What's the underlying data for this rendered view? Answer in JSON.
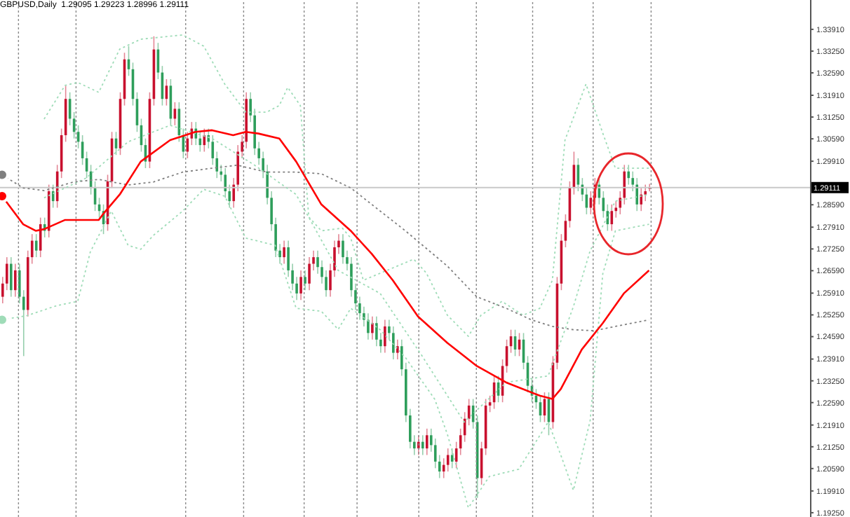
{
  "chart_data": {
    "type": "candlestick",
    "title": "GBPUSD,Daily  1.29095 1.29223 1.28996 1.29111",
    "categories": [
      null,
      null,
      null,
      null,
      null,
      null,
      null,
      null,
      null,
      null,
      null,
      null,
      null,
      null,
      null,
      null,
      null,
      null,
      null,
      null,
      null,
      null,
      null,
      null,
      null,
      null,
      null,
      null,
      null,
      null,
      null,
      null,
      null,
      null,
      null,
      null,
      null,
      null,
      null,
      null,
      null,
      null,
      null,
      null,
      null,
      null,
      null,
      null,
      null,
      null,
      null,
      null,
      null,
      null,
      null,
      null,
      null,
      null,
      null,
      null,
      null,
      null,
      null,
      null,
      null,
      null,
      null,
      null,
      null,
      null,
      null,
      null,
      null,
      null,
      null,
      null,
      null,
      null,
      null,
      null,
      null,
      null,
      null,
      null,
      null,
      null,
      null,
      null,
      null,
      null,
      null,
      null,
      null,
      null,
      null,
      null,
      null,
      null,
      null,
      null,
      null,
      null,
      null,
      null,
      null,
      null,
      null,
      null,
      null,
      null,
      null,
      null,
      null,
      null,
      null,
      null,
      null,
      null,
      null,
      null,
      null,
      null,
      null,
      null,
      null,
      null,
      null,
      null,
      null,
      null,
      null,
      null,
      null,
      null,
      null,
      null,
      null,
      null,
      null,
      null,
      null,
      null,
      null,
      null,
      null,
      null,
      null,
      null,
      null,
      null,
      null,
      null,
      null,
      null,
      null,
      null,
      null,
      null,
      null,
      null,
      null,
      null,
      null,
      null,
      null,
      null,
      null,
      null,
      null,
      null,
      null,
      null,
      null,
      null,
      null,
      null,
      null,
      null,
      null,
      null,
      null,
      null,
      null,
      null,
      null,
      null,
      null,
      null,
      null,
      null,
      null,
      null,
      null
    ],
    "ohlc": [
      [
        1.258,
        1.264,
        1.256,
        1.262
      ],
      [
        1.262,
        1.27,
        1.26,
        1.268
      ],
      [
        1.268,
        1.27,
        1.258,
        1.26
      ],
      [
        1.26,
        1.268,
        1.258,
        1.266
      ],
      [
        1.266,
        1.268,
        1.256,
        1.258
      ],
      [
        1.258,
        1.26,
        1.24,
        1.254
      ],
      [
        1.254,
        1.272,
        1.252,
        1.27
      ],
      [
        1.27,
        1.277,
        1.268,
        1.275
      ],
      [
        1.275,
        1.277,
        1.27,
        1.272
      ],
      [
        1.272,
        1.282,
        1.27,
        1.28
      ],
      [
        1.28,
        1.282,
        1.276,
        1.278
      ],
      [
        1.278,
        1.292,
        1.276,
        1.29
      ],
      [
        1.29,
        1.292,
        1.285,
        1.287
      ],
      [
        1.287,
        1.298,
        1.285,
        1.296
      ],
      [
        1.296,
        1.309,
        1.294,
        1.307
      ],
      [
        1.307,
        1.322,
        1.305,
        1.318
      ],
      [
        1.318,
        1.32,
        1.31,
        1.312
      ],
      [
        1.312,
        1.314,
        1.306,
        1.308
      ],
      [
        1.308,
        1.31,
        1.303,
        1.305
      ],
      [
        1.305,
        1.307,
        1.298,
        1.3
      ],
      [
        1.3,
        1.302,
        1.294,
        1.296
      ],
      [
        1.296,
        1.298,
        1.289,
        1.291
      ],
      [
        1.291,
        1.293,
        1.284,
        1.286
      ],
      [
        1.286,
        1.288,
        1.282,
        1.284
      ],
      [
        1.284,
        1.286,
        1.277,
        1.28
      ],
      [
        1.28,
        1.295,
        1.278,
        1.293
      ],
      [
        1.293,
        1.308,
        1.291,
        1.306
      ],
      [
        1.306,
        1.308,
        1.301,
        1.303
      ],
      [
        1.303,
        1.32,
        1.301,
        1.318
      ],
      [
        1.318,
        1.332,
        1.316,
        1.33
      ],
      [
        1.33,
        1.334,
        1.325,
        1.327
      ],
      [
        1.327,
        1.329,
        1.316,
        1.318
      ],
      [
        1.318,
        1.32,
        1.308,
        1.31
      ],
      [
        1.31,
        1.312,
        1.302,
        1.304
      ],
      [
        1.304,
        1.306,
        1.297,
        1.299
      ],
      [
        1.299,
        1.32,
        1.297,
        1.318
      ],
      [
        1.318,
        1.337,
        1.316,
        1.333
      ],
      [
        1.333,
        1.335,
        1.324,
        1.326
      ],
      [
        1.326,
        1.328,
        1.316,
        1.318
      ],
      [
        1.318,
        1.324,
        1.316,
        1.322
      ],
      [
        1.322,
        1.324,
        1.31,
        1.312
      ],
      [
        1.312,
        1.317,
        1.31,
        1.315
      ],
      [
        1.315,
        1.317,
        1.305,
        1.307
      ],
      [
        1.307,
        1.309,
        1.3,
        1.302
      ],
      [
        1.302,
        1.308,
        1.3,
        1.306
      ],
      [
        1.306,
        1.311,
        1.304,
        1.309
      ],
      [
        1.309,
        1.311,
        1.304,
        1.306
      ],
      [
        1.306,
        1.308,
        1.302,
        1.304
      ],
      [
        1.304,
        1.309,
        1.302,
        1.307
      ],
      [
        1.307,
        1.309,
        1.303,
        1.305
      ],
      [
        1.305,
        1.307,
        1.298,
        1.3
      ],
      [
        1.3,
        1.302,
        1.294,
        1.296
      ],
      [
        1.296,
        1.298,
        1.293,
        1.295
      ],
      [
        1.295,
        1.297,
        1.288,
        1.29
      ],
      [
        1.29,
        1.292,
        1.285,
        1.287
      ],
      [
        1.287,
        1.294,
        1.285,
        1.292
      ],
      [
        1.292,
        1.304,
        1.29,
        1.302
      ],
      [
        1.302,
        1.307,
        1.3,
        1.305
      ],
      [
        1.305,
        1.32,
        1.303,
        1.318
      ],
      [
        1.318,
        1.32,
        1.311,
        1.313
      ],
      [
        1.313,
        1.315,
        1.301,
        1.303
      ],
      [
        1.303,
        1.305,
        1.298,
        1.3
      ],
      [
        1.3,
        1.302,
        1.294,
        1.296
      ],
      [
        1.296,
        1.298,
        1.286,
        1.288
      ],
      [
        1.288,
        1.29,
        1.278,
        1.28
      ],
      [
        1.28,
        1.282,
        1.27,
        1.272
      ],
      [
        1.272,
        1.274,
        1.268,
        1.27
      ],
      [
        1.27,
        1.275,
        1.268,
        1.273
      ],
      [
        1.273,
        1.275,
        1.264,
        1.266
      ],
      [
        1.266,
        1.268,
        1.26,
        1.262
      ],
      [
        1.262,
        1.264,
        1.257,
        1.259
      ],
      [
        1.259,
        1.266,
        1.257,
        1.264
      ],
      [
        1.264,
        1.266,
        1.26,
        1.262
      ],
      [
        1.262,
        1.27,
        1.26,
        1.268
      ],
      [
        1.268,
        1.272,
        1.266,
        1.27
      ],
      [
        1.27,
        1.272,
        1.265,
        1.267
      ],
      [
        1.267,
        1.269,
        1.262,
        1.264
      ],
      [
        1.264,
        1.266,
        1.258,
        1.26
      ],
      [
        1.26,
        1.268,
        1.258,
        1.266
      ],
      [
        1.266,
        1.275,
        1.264,
        1.273
      ],
      [
        1.273,
        1.277,
        1.271,
        1.275
      ],
      [
        1.275,
        1.277,
        1.268,
        1.27
      ],
      [
        1.27,
        1.272,
        1.266,
        1.268
      ],
      [
        1.268,
        1.27,
        1.258,
        1.26
      ],
      [
        1.26,
        1.262,
        1.254,
        1.256
      ],
      [
        1.256,
        1.258,
        1.251,
        1.253
      ],
      [
        1.253,
        1.255,
        1.249,
        1.251
      ],
      [
        1.251,
        1.253,
        1.245,
        1.247
      ],
      [
        1.247,
        1.252,
        1.245,
        1.25
      ],
      [
        1.25,
        1.252,
        1.243,
        1.245
      ],
      [
        1.245,
        1.247,
        1.241,
        1.243
      ],
      [
        1.243,
        1.251,
        1.241,
        1.249
      ],
      [
        1.249,
        1.251,
        1.245,
        1.247
      ],
      [
        1.247,
        1.249,
        1.239,
        1.241
      ],
      [
        1.241,
        1.245,
        1.239,
        1.243
      ],
      [
        1.243,
        1.245,
        1.234,
        1.236
      ],
      [
        1.236,
        1.238,
        1.22,
        1.222
      ],
      [
        1.222,
        1.224,
        1.212,
        1.214
      ],
      [
        1.214,
        1.216,
        1.21,
        1.212
      ],
      [
        1.212,
        1.216,
        1.21,
        1.214
      ],
      [
        1.214,
        1.216,
        1.21,
        1.212
      ],
      [
        1.212,
        1.218,
        1.21,
        1.216
      ],
      [
        1.216,
        1.218,
        1.211,
        1.213
      ],
      [
        1.213,
        1.215,
        1.206,
        1.208
      ],
      [
        1.208,
        1.21,
        1.203,
        1.205
      ],
      [
        1.205,
        1.209,
        1.203,
        1.207
      ],
      [
        1.207,
        1.212,
        1.205,
        1.21
      ],
      [
        1.21,
        1.212,
        1.206,
        1.208
      ],
      [
        1.208,
        1.214,
        1.206,
        1.212
      ],
      [
        1.212,
        1.218,
        1.21,
        1.216
      ],
      [
        1.216,
        1.223,
        1.214,
        1.221
      ],
      [
        1.221,
        1.227,
        1.219,
        1.225
      ],
      [
        1.225,
        1.227,
        1.218,
        1.22
      ],
      [
        1.22,
        1.222,
        1.197,
        1.203
      ],
      [
        1.203,
        1.214,
        1.201,
        1.212
      ],
      [
        1.212,
        1.227,
        1.21,
        1.225
      ],
      [
        1.225,
        1.228,
        1.223,
        1.226
      ],
      [
        1.226,
        1.234,
        1.224,
        1.232
      ],
      [
        1.232,
        1.234,
        1.226,
        1.228
      ],
      [
        1.228,
        1.239,
        1.226,
        1.237
      ],
      [
        1.237,
        1.245,
        1.235,
        1.243
      ],
      [
        1.243,
        1.248,
        1.241,
        1.246
      ],
      [
        1.246,
        1.248,
        1.24,
        1.242
      ],
      [
        1.242,
        1.247,
        1.24,
        1.245
      ],
      [
        1.245,
        1.247,
        1.236,
        1.238
      ],
      [
        1.238,
        1.24,
        1.229,
        1.231
      ],
      [
        1.231,
        1.233,
        1.226,
        1.228
      ],
      [
        1.228,
        1.23,
        1.224,
        1.226
      ],
      [
        1.226,
        1.228,
        1.22,
        1.222
      ],
      [
        1.222,
        1.229,
        1.22,
        1.227
      ],
      [
        1.227,
        1.229,
        1.216,
        1.22
      ],
      [
        1.22,
        1.24,
        1.218,
        1.238
      ],
      [
        1.238,
        1.264,
        1.236,
        1.262
      ],
      [
        1.262,
        1.277,
        1.26,
        1.275
      ],
      [
        1.275,
        1.283,
        1.273,
        1.281
      ],
      [
        1.281,
        1.293,
        1.279,
        1.291
      ],
      [
        1.291,
        1.302,
        1.289,
        1.298
      ],
      [
        1.298,
        1.3,
        1.29,
        1.292
      ],
      [
        1.292,
        1.294,
        1.287,
        1.289
      ],
      [
        1.289,
        1.291,
        1.283,
        1.285
      ],
      [
        1.285,
        1.29,
        1.283,
        1.288
      ],
      [
        1.288,
        1.294,
        1.286,
        1.292
      ],
      [
        1.292,
        1.294,
        1.286,
        1.288
      ],
      [
        1.288,
        1.29,
        1.282,
        1.284
      ],
      [
        1.284,
        1.286,
        1.278,
        1.28
      ],
      [
        1.28,
        1.286,
        1.278,
        1.284
      ],
      [
        1.284,
        1.287,
        1.282,
        1.285
      ],
      [
        1.285,
        1.29,
        1.283,
        1.288
      ],
      [
        1.288,
        1.298,
        1.286,
        1.296
      ],
      [
        1.296,
        1.298,
        1.292,
        1.294
      ],
      [
        1.294,
        1.296,
        1.29,
        1.292
      ],
      [
        1.292,
        1.294,
        1.284,
        1.286
      ],
      [
        1.286,
        1.291,
        1.284,
        1.289
      ],
      [
        1.289,
        1.292,
        1.287,
        1.29
      ],
      [
        1.29095,
        1.29223,
        1.28996,
        1.29111
      ],
      null,
      null,
      null,
      null,
      null,
      null,
      null,
      null,
      null,
      null,
      null,
      null,
      null,
      null,
      null,
      null,
      null,
      null,
      null,
      null,
      null,
      null,
      null,
      null,
      null,
      null,
      null,
      null,
      null,
      null,
      null,
      null,
      null,
      null,
      null,
      null,
      null,
      null
    ],
    "series": [
      {
        "type": "line",
        "color": "#9fdcb8",
        "line_style": "dotted",
        "values": [
          null,
          null,
          null,
          null,
          null,
          null,
          null,
          null,
          null,
          null,
          1.3119,
          null,
          null,
          null,
          null,
          1.3221,
          null,
          null,
          1.323,
          null,
          null,
          null,
          null,
          1.32,
          null,
          null,
          null,
          null,
          1.3331,
          null,
          null,
          null,
          null,
          1.3361,
          null,
          null,
          1.3365,
          null,
          null,
          null,
          null,
          null,
          null,
          1.3374,
          null,
          null,
          null,
          null,
          1.334,
          null,
          null,
          null,
          null,
          1.3225,
          null,
          null,
          null,
          null,
          1.314,
          null,
          null,
          null,
          null,
          1.314,
          null,
          null,
          1.316,
          null,
          1.3215,
          null,
          null,
          1.316,
          null,
          1.2822,
          null,
          null,
          1.278,
          null,
          null,
          null,
          null,
          1.2788,
          null,
          1.2758,
          null,
          null,
          1.263,
          null,
          null,
          null,
          null,
          null,
          null,
          null,
          null,
          null,
          null,
          null,
          1.2694,
          null,
          null,
          1.2652,
          null,
          null,
          null,
          null,
          1.2524,
          null,
          null,
          null,
          null,
          1.246,
          null,
          null,
          1.2524,
          null,
          null,
          null,
          null,
          1.2566,
          null,
          null,
          null,
          null,
          1.2524,
          null,
          null,
          null,
          1.2545,
          null,
          null,
          1.263,
          null,
          null,
          1.3055,
          null,
          null,
          null,
          null,
          1.3225,
          null,
          null,
          null,
          1.3076,
          null,
          null,
          1.297,
          null,
          null,
          null,
          null,
          null,
          null,
          null,
          1.297,
          null,
          null,
          null,
          null,
          null,
          null,
          null,
          null,
          null,
          null,
          null,
          null,
          null,
          null,
          null,
          null,
          null,
          null,
          null,
          null,
          null,
          null,
          null,
          null,
          null,
          null,
          null,
          null,
          null,
          null,
          null,
          null,
          null,
          null,
          null,
          null,
          null,
          null
        ]
      },
      {
        "type": "line",
        "color": "#9fdcb8",
        "line_style": "dotted",
        "values": [
          null,
          null,
          null,
          null,
          null,
          null,
          null,
          null,
          null,
          null,
          1.288,
          null,
          null,
          null,
          null,
          null,
          null,
          null,
          null,
          null,
          1.294,
          null,
          null,
          null,
          null,
          null,
          null,
          null,
          null,
          null,
          1.305,
          null,
          null,
          null,
          null,
          null,
          null,
          null,
          null,
          null,
          1.31,
          null,
          null,
          null,
          null,
          null,
          null,
          null,
          null,
          null,
          1.306,
          null,
          null,
          null,
          null,
          null,
          null,
          null,
          null,
          null,
          1.298,
          null,
          null,
          null,
          null,
          null,
          null,
          null,
          null,
          null,
          1.289,
          null,
          null,
          null,
          null,
          null,
          null,
          null,
          null,
          null,
          1.266,
          null,
          null,
          null,
          null,
          null,
          null,
          null,
          null,
          null,
          1.259,
          null,
          null,
          null,
          null,
          null,
          null,
          null,
          null,
          null,
          1.24,
          null,
          null,
          null,
          null,
          null,
          null,
          null,
          null,
          null,
          1.22,
          null,
          null,
          null,
          null,
          null,
          null,
          null,
          null,
          null,
          1.232,
          null,
          null,
          null,
          null,
          null,
          null,
          null,
          null,
          null,
          1.234,
          null,
          null,
          null,
          null,
          null,
          1.255,
          null,
          null,
          null,
          1.272,
          null,
          null,
          null,
          null,
          null,
          1.287,
          null,
          null,
          null,
          null,
          null,
          null,
          null,
          1.289,
          null,
          null,
          null,
          null,
          null,
          null,
          null,
          null,
          null,
          null,
          null,
          null,
          null,
          null,
          null,
          null,
          null,
          null,
          null,
          null,
          null,
          null,
          null,
          null,
          null,
          null,
          null,
          null,
          null,
          null,
          null,
          null,
          null,
          null,
          null,
          null,
          null,
          null
        ]
      },
      {
        "type": "line",
        "color": "#9fdcb8",
        "line_style": "dotted",
        "values": [
          1.251,
          null,
          null,
          null,
          null,
          null,
          1.2523,
          null,
          null,
          null,
          null,
          null,
          null,
          1.2553,
          null,
          null,
          null,
          null,
          1.2566,
          null,
          null,
          1.2716,
          null,
          null,
          null,
          null,
          1.284,
          null,
          null,
          null,
          1.2736,
          null,
          null,
          1.2724,
          null,
          null,
          1.2766,
          null,
          null,
          null,
          null,
          null,
          null,
          1.284,
          null,
          null,
          null,
          null,
          1.2906,
          null,
          null,
          null,
          null,
          1.2885,
          null,
          null,
          null,
          null,
          1.2758,
          null,
          null,
          null,
          null,
          null,
          null,
          1.2736,
          null,
          null,
          null,
          null,
          1.2545,
          null,
          null,
          null,
          null,
          null,
          1.2536,
          null,
          null,
          null,
          1.2481,
          null,
          null,
          1.2545,
          null,
          null,
          null,
          null,
          null,
          null,
          1.248,
          null,
          null,
          null,
          null,
          null,
          1.2396,
          null,
          null,
          null,
          null,
          null,
          null,
          1.2269,
          null,
          null,
          1.2163,
          null,
          null,
          null,
          null,
          1.194,
          null,
          null,
          null,
          null,
          1.2035,
          null,
          null,
          null,
          null,
          null,
          null,
          1.2057,
          null,
          null,
          null,
          null,
          null,
          null,
          1.22,
          null,
          null,
          1.21,
          null,
          null,
          1.1993,
          null,
          null,
          null,
          1.2205,
          null,
          null,
          1.265,
          null,
          null,
          1.278,
          null,
          null,
          null,
          null,
          null,
          null,
          null,
          1.28,
          null,
          null,
          null,
          null,
          null,
          null,
          null,
          null,
          null,
          null,
          null,
          null,
          null,
          null,
          null,
          null,
          null,
          null,
          null,
          null,
          null,
          null,
          null,
          null,
          null,
          null,
          null,
          null,
          null,
          null,
          null,
          null,
          null,
          null,
          null,
          null,
          null,
          null
        ]
      },
      {
        "type": "line",
        "color": "#808080",
        "line_style": "dotted",
        "values": [
          1.295,
          null,
          null,
          null,
          null,
          1.291,
          null,
          null,
          null,
          null,
          1.2902,
          null,
          null,
          null,
          null,
          null,
          null,
          1.2928,
          null,
          null,
          null,
          null,
          null,
          1.2936,
          null,
          null,
          null,
          null,
          null,
          null,
          1.2919,
          null,
          null,
          null,
          null,
          null,
          1.2928,
          null,
          null,
          null,
          null,
          null,
          null,
          1.2958,
          null,
          null,
          null,
          null,
          null,
          null,
          1.297,
          null,
          null,
          null,
          null,
          null,
          1.2979,
          null,
          null,
          null,
          null,
          null,
          null,
          1.2958,
          null,
          null,
          null,
          null,
          null,
          null,
          1.2958,
          null,
          null,
          null,
          null,
          null,
          1.2953,
          null,
          null,
          null,
          null,
          null,
          null,
          1.291,
          null,
          null,
          null,
          null,
          null,
          null,
          1.284,
          null,
          null,
          null,
          null,
          null,
          1.278,
          null,
          null,
          null,
          null,
          null,
          null,
          null,
          null,
          null,
          1.2673,
          null,
          null,
          null,
          null,
          null,
          null,
          1.258,
          null,
          null,
          null,
          null,
          null,
          null,
          1.2545,
          null,
          null,
          null,
          null,
          null,
          1.251,
          null,
          null,
          null,
          null,
          1.249,
          null,
          null,
          null,
          null,
          1.248,
          null,
          null,
          null,
          null,
          1.2477,
          null,
          null,
          null,
          null,
          1.249,
          null,
          null,
          null,
          null,
          null,
          null,
          null,
          1.251,
          null,
          null,
          null,
          null,
          null,
          null,
          null,
          null,
          null,
          null,
          null,
          null,
          null,
          null,
          null,
          null,
          null,
          null,
          null,
          null,
          null,
          null,
          null,
          null,
          null,
          null,
          null,
          null,
          null,
          null,
          null,
          null,
          null,
          null,
          null,
          null,
          null,
          null
        ]
      },
      {
        "type": "line",
        "color": "#ff0000",
        "line_style": "solid",
        "values": [
          1.2885,
          null,
          null,
          null,
          null,
          1.28,
          null,
          null,
          1.278,
          null,
          1.2785,
          null,
          null,
          null,
          null,
          1.2813,
          null,
          null,
          null,
          null,
          null,
          null,
          null,
          1.2813,
          1.283,
          null,
          null,
          null,
          1.289,
          null,
          null,
          null,
          null,
          1.299,
          null,
          null,
          null,
          null,
          null,
          null,
          1.3055,
          null,
          null,
          null,
          null,
          null,
          1.308,
          null,
          null,
          null,
          1.3085,
          null,
          null,
          null,
          null,
          1.307,
          null,
          null,
          1.308,
          null,
          null,
          1.3075,
          null,
          null,
          null,
          null,
          1.306,
          null,
          null,
          null,
          1.299,
          null,
          null,
          null,
          null,
          null,
          1.286,
          null,
          null,
          null,
          null,
          null,
          null,
          1.278,
          null,
          null,
          null,
          null,
          1.271,
          null,
          null,
          null,
          null,
          1.263,
          null,
          null,
          null,
          null,
          null,
          1.252,
          null,
          null,
          null,
          null,
          null,
          null,
          1.244,
          null,
          null,
          null,
          null,
          null,
          null,
          1.237,
          null,
          null,
          null,
          null,
          null,
          null,
          1.232,
          null,
          null,
          null,
          null,
          null,
          null,
          null,
          1.228,
          null,
          null,
          1.227,
          null,
          1.23,
          null,
          null,
          null,
          null,
          1.242,
          null,
          null,
          null,
          null,
          1.25,
          null,
          null,
          null,
          null,
          1.259,
          null,
          null,
          null,
          null,
          null,
          1.266,
          null,
          null,
          null,
          null,
          null,
          null,
          null,
          null,
          null,
          null,
          null,
          null,
          null,
          null,
          null,
          null,
          null,
          null,
          null,
          null,
          null,
          null,
          null,
          null,
          null,
          null,
          null,
          null,
          null,
          null,
          null,
          null,
          null,
          null,
          null,
          null,
          null,
          null
        ]
      }
    ],
    "ylim": [
      1.1912,
      1.348
    ],
    "yticks": [
      {
        "value": 1.3391,
        "label": "1.33910"
      },
      {
        "value": 1.3325,
        "label": "1.33250"
      },
      {
        "value": 1.3259,
        "label": "1.32590"
      },
      {
        "value": 1.3191,
        "label": "1.31910"
      },
      {
        "value": 1.3125,
        "label": "1.31250"
      },
      {
        "value": 1.3059,
        "label": "1.30590"
      },
      {
        "value": 1.2991,
        "label": "1.29910"
      },
      {
        "value": 1.2859,
        "label": "1.28590"
      },
      {
        "value": 1.2791,
        "label": "1.27910"
      },
      {
        "value": 1.2725,
        "label": "1.27250"
      },
      {
        "value": 1.2659,
        "label": "1.26590"
      },
      {
        "value": 1.2591,
        "label": "1.25910"
      },
      {
        "value": 1.2525,
        "label": "1.25250"
      },
      {
        "value": 1.2459,
        "label": "1.24590"
      },
      {
        "value": 1.2391,
        "label": "1.23910"
      },
      {
        "value": 1.2325,
        "label": "1.23250"
      },
      {
        "value": 1.2259,
        "label": "1.22590"
      },
      {
        "value": 1.2191,
        "label": "1.21910"
      },
      {
        "value": 1.2125,
        "label": "1.21250"
      },
      {
        "value": 1.2059,
        "label": "1.20590"
      },
      {
        "value": 1.1991,
        "label": "1.19910"
      },
      {
        "value": 1.1925,
        "label": "1.19250"
      }
    ],
    "tick_labels": "y",
    "ref_lines": [
      {
        "axis": "y",
        "value": 1.29111,
        "label": "1.29111",
        "color": "#c8c8c8"
      }
    ]
  }
}
